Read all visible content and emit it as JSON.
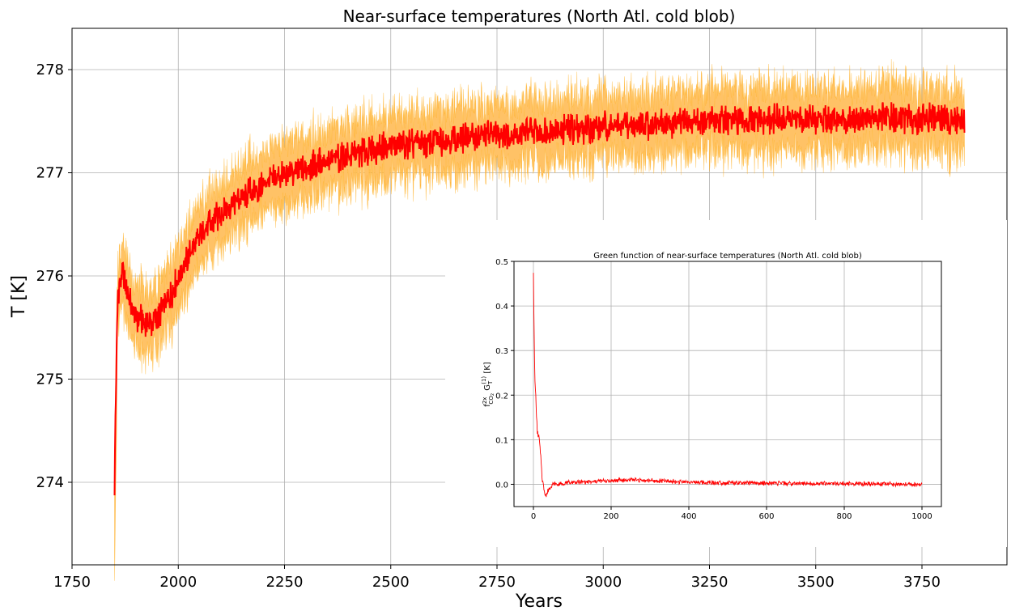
{
  "colors": {
    "mean_line": "#ff0000",
    "band": "#ffc266",
    "band_edge": "#ffa500"
  },
  "chart_data": [
    {
      "type": "line",
      "title": "Near-surface temperatures (North Atl. cold blob)",
      "xlabel": "Years",
      "ylabel": "T [K]",
      "xlim": [
        1750,
        3950
      ],
      "ylim": [
        273.2,
        278.4
      ],
      "xticks": [
        1750,
        2000,
        2250,
        2500,
        2750,
        3000,
        3250,
        3500,
        3750
      ],
      "yticks": [
        274,
        275,
        276,
        277,
        278
      ],
      "grid": true,
      "series": [
        {
          "x": [
            1850,
            1852,
            1855,
            1858,
            1862,
            1866,
            1870,
            1875,
            1880,
            1890,
            1900,
            1910,
            1920,
            1930,
            1940,
            1950,
            1960,
            1975,
            2000,
            2025,
            2050,
            2075,
            2100,
            2125,
            2150,
            2175,
            2200,
            2250,
            2300,
            2350,
            2400,
            2450,
            2500,
            2550,
            2600,
            2650,
            2700,
            2750,
            2800,
            2850,
            2900,
            2950,
            3000,
            3050,
            3100,
            3150,
            3200,
            3250,
            3300,
            3350,
            3400,
            3450,
            3500,
            3550,
            3600,
            3650,
            3700,
            3750,
            3800,
            3850
          ],
          "y": [
            274.0,
            274.6,
            275.3,
            275.8,
            275.9,
            276.0,
            276.05,
            275.95,
            275.85,
            275.7,
            275.62,
            275.58,
            275.56,
            275.55,
            275.56,
            275.6,
            275.66,
            275.75,
            275.98,
            276.2,
            276.38,
            276.52,
            276.6,
            276.7,
            276.76,
            276.82,
            276.88,
            276.98,
            277.05,
            277.12,
            277.17,
            277.22,
            277.25,
            277.28,
            277.3,
            277.33,
            277.35,
            277.37,
            277.38,
            277.4,
            277.42,
            277.43,
            277.44,
            277.46,
            277.47,
            277.48,
            277.48,
            277.5,
            277.5,
            277.5,
            277.52,
            277.52,
            277.52,
            277.52,
            277.53,
            277.53,
            277.52,
            277.53,
            277.53,
            277.5
          ],
          "band_halfwidth": 0.3
        }
      ]
    },
    {
      "type": "line",
      "title": "Green function of near-surface temperatures (North Atl. cold blob)",
      "xlabel": "",
      "ylabel": "f_CO2^2x G_T^(1) [K]",
      "ylabel_parts": {
        "f": "f",
        "sup": "2x",
        "co2": "CO",
        "co2sub": "2",
        "g": " G",
        "gsub": "T",
        "gsup": "(1)",
        "unit": " [K]"
      },
      "xlim": [
        -50,
        1050
      ],
      "ylim": [
        -0.05,
        0.5
      ],
      "xticks": [
        0,
        200,
        400,
        600,
        800,
        1000
      ],
      "yticks": [
        0.0,
        0.1,
        0.2,
        0.3,
        0.4,
        0.5
      ],
      "yticklabels": [
        "0.0",
        "0.1",
        "0.2",
        "0.3",
        "0.4",
        "0.5"
      ],
      "grid": true,
      "series": [
        {
          "x": [
            0,
            2,
            4,
            6,
            8,
            10,
            12,
            15,
            18,
            20,
            22,
            25,
            28,
            30,
            33,
            36,
            40,
            45,
            50,
            60,
            80,
            100,
            150,
            200,
            250,
            300,
            400,
            500,
            600,
            700,
            800,
            900,
            1000
          ],
          "y": [
            0.48,
            0.32,
            0.23,
            0.2,
            0.15,
            0.12,
            0.11,
            0.1,
            0.07,
            0.05,
            0.02,
            0.0,
            -0.01,
            -0.02,
            -0.025,
            -0.02,
            -0.01,
            -0.005,
            0.0,
            0.0,
            0.002,
            0.004,
            0.006,
            0.008,
            0.01,
            0.008,
            0.005,
            0.003,
            0.002,
            0.002,
            0.001,
            0.001,
            0.0
          ]
        }
      ]
    }
  ]
}
